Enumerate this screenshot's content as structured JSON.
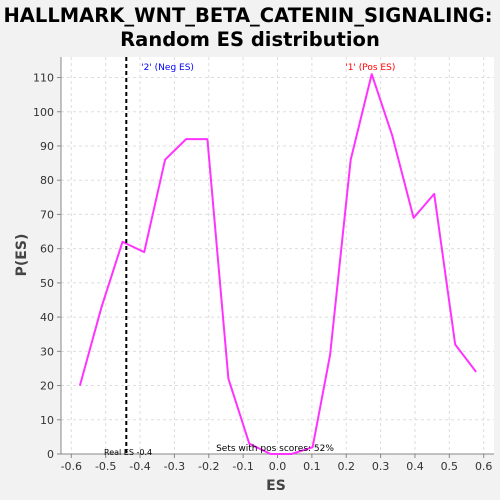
{
  "chart_data": {
    "type": "line",
    "title_line1": "HALLMARK_WNT_BETA_CATENIN_SIGNALING:",
    "title_line2": "Random ES distribution",
    "xlabel": "ES",
    "ylabel": "P(ES)",
    "xlim": [
      -0.63,
      0.63
    ],
    "ylim": [
      0,
      116
    ],
    "xticks": [
      -0.6,
      -0.5,
      -0.4,
      -0.3,
      -0.2,
      -0.1,
      0,
      0.1,
      0.2,
      0.3,
      0.4,
      0.5,
      0.6
    ],
    "xtick_labels": [
      "-0.6",
      "-0.5",
      "-0.4",
      "-0.3",
      "-0.2",
      "-0.1",
      "0.0",
      "0.1",
      "0.2",
      "0.3",
      "0.4",
      "0.5",
      "0.6"
    ],
    "yticks": [
      0,
      10,
      20,
      30,
      40,
      50,
      60,
      70,
      80,
      90,
      100,
      110
    ],
    "ytick_labels": [
      "0",
      "10",
      "20",
      "30",
      "40",
      "50",
      "60",
      "70",
      "80",
      "90",
      "100",
      "110"
    ],
    "grid": true,
    "series": [
      {
        "color": "#ff33ff",
        "x": [
          -0.575,
          -0.512,
          -0.451,
          -0.388,
          -0.327,
          -0.266,
          -0.204,
          -0.143,
          -0.082,
          -0.02,
          0.041,
          0.102,
          0.153,
          0.213,
          0.274,
          0.334,
          0.396,
          0.456,
          0.517,
          0.578
        ],
        "y": [
          20,
          43,
          62,
          59,
          86,
          92,
          92,
          22,
          3,
          0,
          0,
          2,
          29,
          86,
          111,
          93,
          69,
          76,
          32,
          24
        ]
      }
    ],
    "real_es": -0.44,
    "real_es_color": "#000000",
    "annotations": {
      "neg": {
        "text": "'2' (Neg ES)",
        "x": -0.32,
        "color": "#0000ff"
      },
      "pos": {
        "text": "'1' (Pos ES)",
        "x": 0.27,
        "color": "#ff0000"
      },
      "real_es_text": "Real ES -0.4",
      "pos_scores_text": "Sets with pos scores: 52%"
    }
  }
}
